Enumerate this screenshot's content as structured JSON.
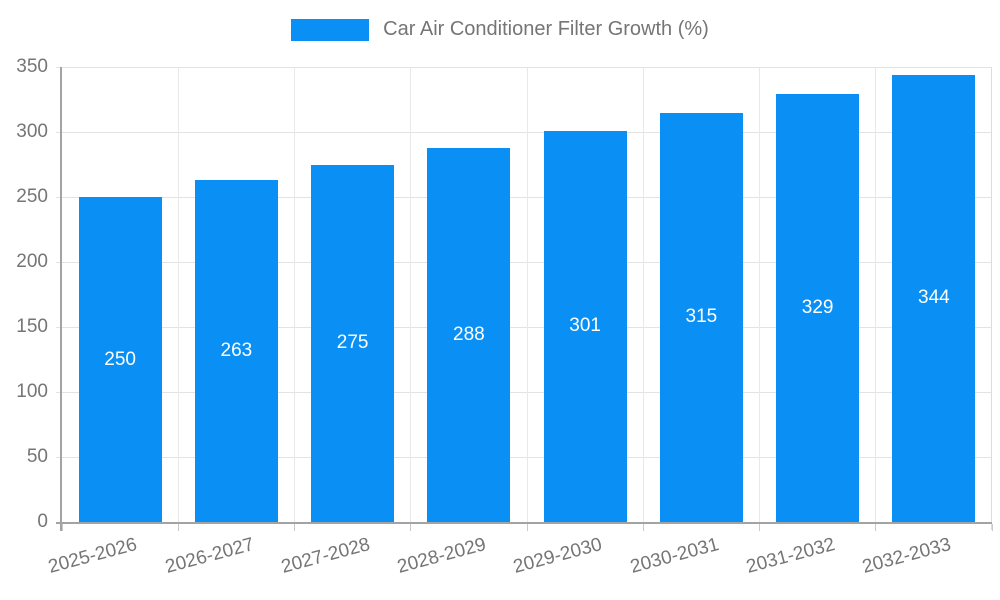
{
  "legend": {
    "label": "Car Air Conditioner Filter Growth (%)"
  },
  "colors": {
    "bar": "#0a90f5",
    "grid": "#e3e3e3",
    "axis": "#a3a3a3",
    "tick_text": "#757575",
    "value_label_text": "#ffffff",
    "background": "#ffffff"
  },
  "chart_data": {
    "type": "bar",
    "title": "Car Air Conditioner Filter Growth (%)",
    "categories": [
      "2025-2026",
      "2026-2027",
      "2027-2028",
      "2028-2029",
      "2029-2030",
      "2030-2031",
      "2031-2032",
      "2032-2033"
    ],
    "values": [
      250,
      263,
      275,
      288,
      301,
      315,
      329,
      344
    ],
    "xlabel": "",
    "ylabel": "",
    "ylim": [
      0,
      350
    ],
    "y_ticks": [
      0,
      50,
      100,
      150,
      200,
      250,
      300,
      350
    ],
    "grid": true,
    "legend_position": "top-center",
    "value_labels": "inside-center",
    "x_tick_rotation_deg": -15
  }
}
